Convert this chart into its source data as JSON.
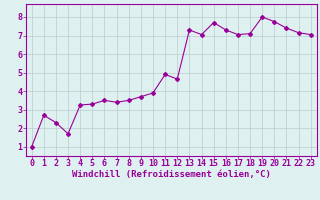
{
  "x": [
    0,
    1,
    2,
    3,
    4,
    5,
    6,
    7,
    8,
    9,
    10,
    11,
    12,
    13,
    14,
    15,
    16,
    17,
    18,
    19,
    20,
    21,
    22,
    23
  ],
  "y": [
    1.0,
    2.7,
    2.3,
    1.7,
    3.25,
    3.3,
    3.5,
    3.4,
    3.5,
    3.7,
    3.9,
    4.9,
    4.65,
    7.3,
    7.05,
    7.7,
    7.3,
    7.05,
    7.1,
    8.0,
    7.75,
    7.4,
    7.15,
    7.05
  ],
  "line_color": "#990099",
  "marker": "D",
  "marker_size": 2,
  "bg_color": "#dff0f0",
  "grid_color": "#bbcccc",
  "xlabel": "Windchill (Refroidissement éolien,°C)",
  "xlabel_color": "#990099",
  "xlabel_fontsize": 6.5,
  "tick_color": "#990099",
  "tick_fontsize": 6,
  "ylim": [
    0.5,
    8.7
  ],
  "yticks": [
    1,
    2,
    3,
    4,
    5,
    6,
    7,
    8
  ],
  "xticks": [
    0,
    1,
    2,
    3,
    4,
    5,
    6,
    7,
    8,
    9,
    10,
    11,
    12,
    13,
    14,
    15,
    16,
    17,
    18,
    19,
    20,
    21,
    22,
    23
  ],
  "spine_color": "#990099",
  "xlim": [
    -0.5,
    23.5
  ]
}
